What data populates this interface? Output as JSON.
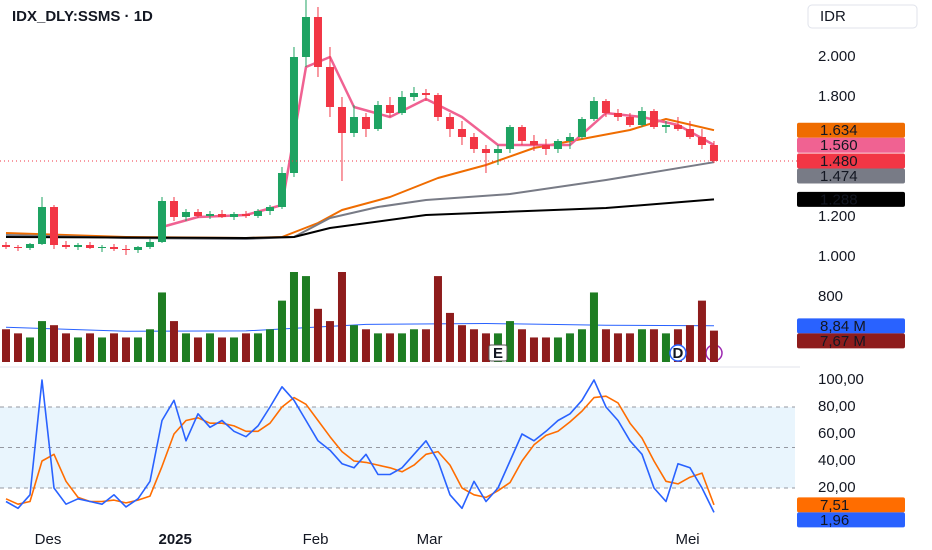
{
  "chart_data": {
    "type": "candlestick",
    "title": "IDX_DLY:SSMS · 1D",
    "currency": "IDR",
    "xlim": [
      -0.5,
      66.17
    ],
    "xticks": [
      {
        "value": 3.5,
        "label": "Des"
      },
      {
        "value": 14.1,
        "label": "2025"
      },
      {
        "value": 25.8,
        "label": "Feb"
      },
      {
        "value": 35.3,
        "label": "Mar"
      },
      {
        "value": 56.8,
        "label": "Mei"
      }
    ],
    "ylim": [
      835,
      2285
    ],
    "yticks": [
      800,
      {
        "value": 1000,
        "label": "1.000"
      },
      {
        "value": 1200,
        "label": "1.200"
      },
      {
        "value": 1800,
        "label": "1.800"
      },
      {
        "value": 2000,
        "label": "2.000"
      }
    ],
    "up_color": "#1ea362",
    "down_color": "#f23645",
    "candles": {
      "open": [
        1060,
        1050,
        1045,
        1065,
        1250,
        1060,
        1050,
        1060,
        1045,
        1050,
        1040,
        1035,
        1050,
        1075,
        1280,
        1200,
        1225,
        1205,
        1215,
        1200,
        1215,
        1205,
        1230,
        1250,
        1420,
        2000,
        2200,
        1950,
        1750,
        1620,
        1700,
        1640,
        1760,
        1720,
        1800,
        1820,
        1810,
        1700,
        1640,
        1600,
        1540,
        1520,
        1540,
        1650,
        1580,
        1560,
        1540,
        1580,
        1600,
        1690,
        1780,
        1720,
        1700,
        1660,
        1730,
        1650,
        1660,
        1640,
        1600,
        1560
      ],
      "high": [
        1075,
        1060,
        1070,
        1300,
        1260,
        1080,
        1070,
        1075,
        1060,
        1065,
        1060,
        1055,
        1090,
        1300,
        1300,
        1240,
        1240,
        1230,
        1235,
        1225,
        1230,
        1240,
        1260,
        1450,
        2050,
        2290,
        2250,
        2050,
        1800,
        1760,
        1720,
        1780,
        1800,
        1830,
        1850,
        1840,
        1820,
        1720,
        1680,
        1620,
        1560,
        1560,
        1660,
        1660,
        1610,
        1590,
        1590,
        1620,
        1700,
        1800,
        1790,
        1740,
        1720,
        1750,
        1740,
        1680,
        1700,
        1680,
        1640,
        1580
      ],
      "low": [
        1040,
        1030,
        1035,
        1060,
        1040,
        1040,
        1035,
        1040,
        1025,
        1030,
        1010,
        1020,
        1040,
        1070,
        1180,
        1180,
        1195,
        1190,
        1195,
        1185,
        1195,
        1195,
        1210,
        1240,
        1400,
        1950,
        1900,
        1700,
        1380,
        1600,
        1600,
        1630,
        1700,
        1710,
        1780,
        1780,
        1680,
        1600,
        1560,
        1520,
        1420,
        1460,
        1520,
        1560,
        1530,
        1510,
        1520,
        1540,
        1590,
        1680,
        1700,
        1680,
        1650,
        1650,
        1640,
        1620,
        1630,
        1590,
        1540,
        1470
      ],
      "close": [
        1050,
        1045,
        1065,
        1250,
        1060,
        1050,
        1060,
        1045,
        1050,
        1040,
        1035,
        1050,
        1075,
        1280,
        1200,
        1225,
        1205,
        1215,
        1200,
        1215,
        1205,
        1230,
        1250,
        1420,
        2000,
        2200,
        1950,
        1750,
        1620,
        1700,
        1640,
        1760,
        1720,
        1800,
        1820,
        1810,
        1700,
        1640,
        1600,
        1540,
        1520,
        1540,
        1650,
        1580,
        1560,
        1540,
        1580,
        1600,
        1690,
        1780,
        1720,
        1700,
        1660,
        1730,
        1650,
        1660,
        1640,
        1600,
        1560,
        1480
      ],
      "close_label": "1.480"
    },
    "series": [
      {
        "color": "#ef6c00",
        "x": [
          0,
          10,
          20,
          23,
          26,
          28,
          32,
          36,
          40,
          44,
          48,
          52,
          55,
          59
        ],
        "values": [
          1120,
          1100,
          1095,
          1100,
          1170,
          1235,
          1300,
          1395,
          1460,
          1545,
          1590,
          1635,
          1690,
          1634
        ],
        "last_label": "1.634"
      },
      {
        "color": "#f06292",
        "x": [
          13,
          16,
          20,
          23,
          25,
          27,
          29,
          32,
          35,
          38,
          41,
          44,
          47,
          50,
          53,
          56,
          59
        ],
        "values": [
          1150,
          1200,
          1210,
          1260,
          1950,
          2000,
          1750,
          1700,
          1790,
          1700,
          1560,
          1560,
          1560,
          1720,
          1700,
          1660,
          1560
        ],
        "last_label": "1.560"
      },
      {
        "color": "#787b86",
        "x": [
          0,
          10,
          20,
          24,
          27,
          31,
          35,
          42,
          50,
          59
        ],
        "values": [
          1110,
          1095,
          1090,
          1100,
          1195,
          1250,
          1285,
          1315,
          1385,
          1474
        ],
        "last_label": "1.474"
      },
      {
        "color": "#000000",
        "x": [
          0,
          20,
          24,
          27,
          35,
          50,
          59
        ],
        "values": [
          1100,
          1095,
          1100,
          1145,
          1210,
          1245,
          1288
        ],
        "last_label": "1.288"
      }
    ],
    "events": [
      {
        "label": "E",
        "index": 41
      },
      {
        "label": "D",
        "index": 56
      }
    ],
    "volume": {
      "values": [
        8,
        7,
        6,
        10,
        9,
        7,
        6,
        7,
        6,
        7,
        6,
        6,
        8,
        17,
        10,
        7,
        6,
        7,
        6,
        6,
        7,
        7,
        8,
        15,
        22,
        21,
        13,
        10,
        22,
        9,
        8,
        7,
        7,
        7,
        8,
        8,
        21,
        12,
        9,
        8,
        7,
        7,
        10,
        8,
        6,
        6,
        6,
        7,
        8,
        17,
        8,
        7,
        7,
        8,
        8,
        7,
        8,
        9,
        15,
        7.67
      ],
      "last_label": "7,67 M",
      "up_color": "#1e7d22",
      "down_color": "#8e1c1c",
      "ylim": [
        0,
        22
      ],
      "ma": {
        "color": "#2962ff",
        "x": [
          0,
          10,
          20,
          30,
          40,
          50,
          59
        ],
        "values": [
          8.5,
          7.5,
          7.6,
          9.2,
          9.4,
          9.0,
          8.84
        ],
        "last_label": "8,84 M"
      }
    },
    "stochastic": {
      "ylim": [
        0,
        100
      ],
      "yticks": [
        {
          "value": 20,
          "label": "20,00"
        },
        {
          "value": 40,
          "label": "40,00"
        },
        {
          "value": 60,
          "label": "60,00"
        },
        {
          "value": 80,
          "label": "80,00"
        },
        {
          "value": 100,
          "label": "100,00"
        }
      ],
      "levels": [
        20,
        50,
        80
      ],
      "k": {
        "color": "#2962ff",
        "values": [
          10,
          5,
          15,
          100,
          20,
          8,
          12,
          10,
          8,
          15,
          6,
          12,
          25,
          70,
          85,
          55,
          75,
          65,
          70,
          62,
          58,
          66,
          80,
          95,
          85,
          70,
          55,
          48,
          38,
          35,
          45,
          30,
          30,
          35,
          45,
          55,
          40,
          15,
          5,
          25,
          10,
          20,
          40,
          60,
          55,
          62,
          70,
          75,
          85,
          100,
          80,
          70,
          55,
          45,
          20,
          10,
          38,
          35,
          20,
          1.96
        ],
        "last_label": "1,96"
      },
      "d": {
        "color": "#ff6d00",
        "values": [
          12,
          8,
          10,
          40,
          45,
          25,
          13,
          10,
          10,
          11,
          9,
          11,
          14,
          36,
          60,
          70,
          72,
          68,
          68,
          66,
          62,
          62,
          68,
          80,
          87,
          82,
          70,
          58,
          47,
          40,
          39,
          37,
          35,
          32,
          37,
          45,
          47,
          37,
          20,
          15,
          13,
          18,
          24,
          40,
          52,
          59,
          62,
          69,
          77,
          87,
          88,
          83,
          68,
          57,
          40,
          25,
          23,
          28,
          31,
          7.51
        ],
        "last_label": "7,51"
      }
    }
  }
}
